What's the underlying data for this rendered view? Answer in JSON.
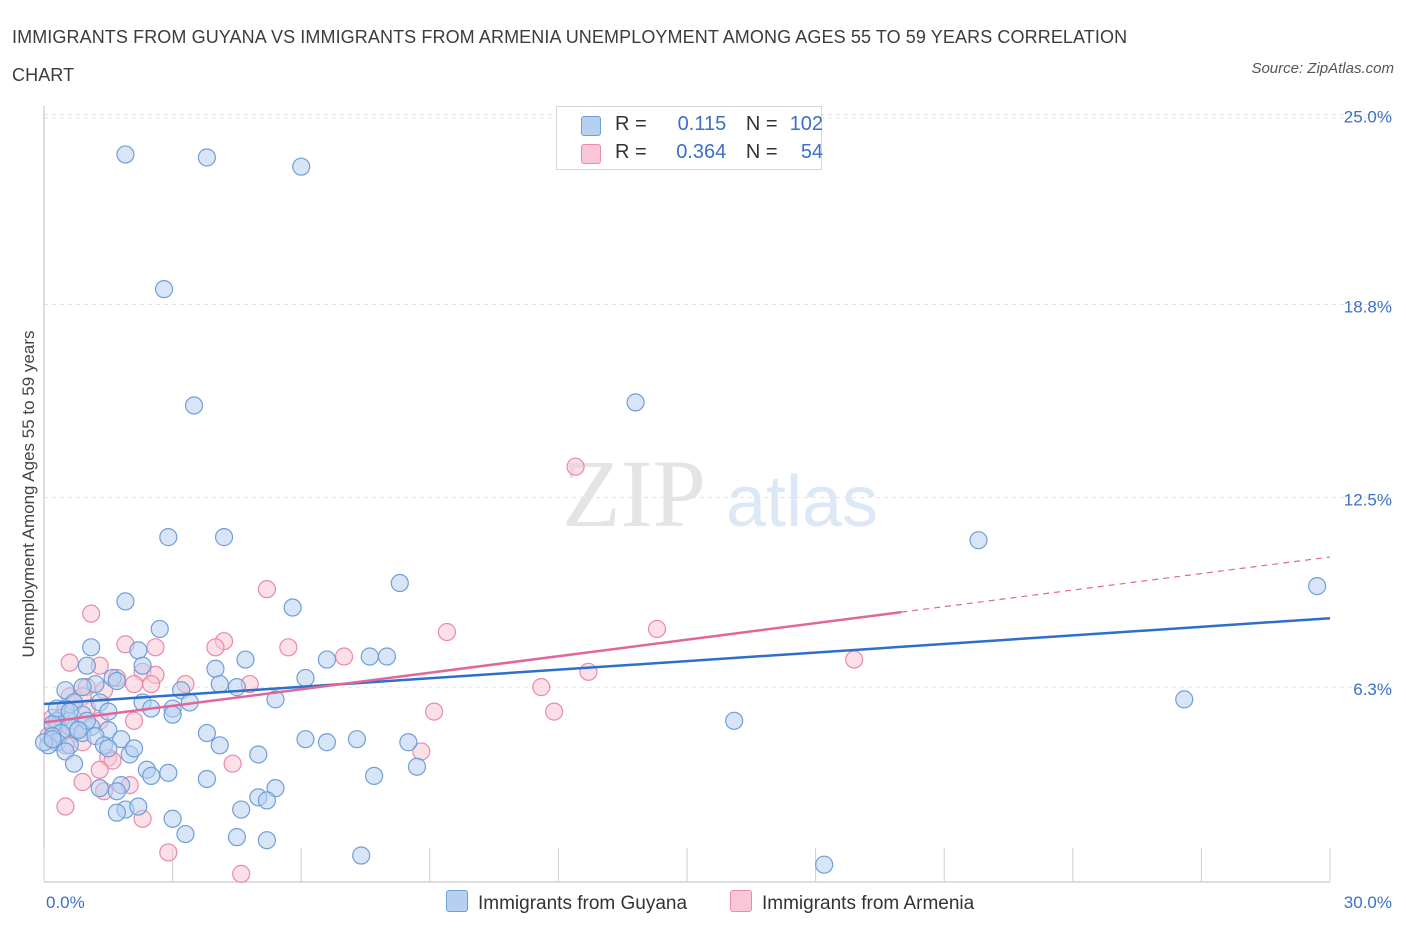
{
  "title": "IMMIGRANTS FROM GUYANA VS IMMIGRANTS FROM ARMENIA UNEMPLOYMENT AMONG AGES 55 TO 59 YEARS CORRELATION CHART",
  "source": "Source: ZipAtlas.com",
  "watermark": {
    "zip": "ZIP",
    "atlas": "atlas"
  },
  "legend_top": {
    "rows": [
      {
        "r_label": "R =",
        "r_value": "0.115",
        "n_label": "N =",
        "n_value": "102"
      },
      {
        "r_label": "R =",
        "r_value": "0.364",
        "n_label": "N =",
        "n_value": "54"
      }
    ]
  },
  "colors": {
    "guyana_fill": "#b8d0f0",
    "guyana_stroke": "#6f9fd8",
    "guyana_line": "#2e6fc9",
    "armenia_fill": "#f8c6d6",
    "armenia_stroke": "#e88aa8",
    "armenia_line": "#e0679a",
    "grid": "#e2e2e2",
    "tick_label": "#3a70c8"
  },
  "chart_data": {
    "type": "scatter",
    "title": "IMMIGRANTS FROM GUYANA VS IMMIGRANTS FROM ARMENIA UNEMPLOYMENT AMONG AGES 55 TO 59 YEARS CORRELATION CHART",
    "xlabel": "",
    "ylabel": "Unemployment Among Ages 55 to 59 years",
    "xlim": [
      0,
      30
    ],
    "ylim": [
      0,
      26
    ],
    "x_tick_labels": [
      "0.0%",
      "30.0%"
    ],
    "y_ticks": [
      6.3,
      12.5,
      18.8,
      25.0
    ],
    "y_tick_labels": [
      "6.3%",
      "12.5%",
      "18.8%",
      "25.0%"
    ],
    "legend": [
      "Immigrants from Guyana",
      "Immigrants from Armenia"
    ],
    "series": [
      {
        "name": "Immigrants from Guyana",
        "R": 0.115,
        "N": 102,
        "trend": {
          "x": [
            0,
            30
          ],
          "y": [
            5.75,
            8.55
          ]
        },
        "points": [
          [
            1.9,
            23.7
          ],
          [
            3.8,
            23.6
          ],
          [
            6.0,
            23.3
          ],
          [
            2.8,
            19.3
          ],
          [
            3.5,
            15.5
          ],
          [
            13.8,
            15.6
          ],
          [
            2.9,
            11.2
          ],
          [
            4.2,
            11.2
          ],
          [
            21.8,
            11.1
          ],
          [
            8.3,
            9.7
          ],
          [
            29.7,
            9.6
          ],
          [
            1.9,
            9.1
          ],
          [
            5.8,
            8.9
          ],
          [
            2.7,
            8.2
          ],
          [
            1.1,
            7.6
          ],
          [
            2.2,
            7.5
          ],
          [
            6.6,
            7.2
          ],
          [
            7.6,
            7.3
          ],
          [
            8.0,
            7.3
          ],
          [
            4.7,
            7.2
          ],
          [
            1.0,
            7.0
          ],
          [
            2.3,
            7.0
          ],
          [
            4.0,
            6.9
          ],
          [
            6.1,
            6.6
          ],
          [
            1.6,
            6.6
          ],
          [
            1.7,
            6.5
          ],
          [
            1.2,
            6.4
          ],
          [
            4.1,
            6.4
          ],
          [
            4.5,
            6.3
          ],
          [
            3.2,
            6.2
          ],
          [
            0.5,
            6.2
          ],
          [
            0.9,
            6.3
          ],
          [
            26.6,
            5.9
          ],
          [
            5.4,
            5.9
          ],
          [
            3.4,
            5.8
          ],
          [
            2.3,
            5.8
          ],
          [
            0.7,
            5.8
          ],
          [
            1.3,
            5.8
          ],
          [
            0.5,
            5.6
          ],
          [
            2.5,
            5.6
          ],
          [
            3.0,
            5.6
          ],
          [
            1.5,
            5.5
          ],
          [
            3.0,
            5.4
          ],
          [
            0.9,
            5.4
          ],
          [
            0.4,
            5.3
          ],
          [
            0.6,
            5.2
          ],
          [
            16.1,
            5.2
          ],
          [
            0.3,
            5.2
          ],
          [
            0.2,
            5.1
          ],
          [
            0.6,
            5.0
          ],
          [
            1.1,
            5.0
          ],
          [
            0.8,
            4.9
          ],
          [
            1.5,
            4.9
          ],
          [
            0.4,
            4.8
          ],
          [
            0.9,
            4.8
          ],
          [
            3.8,
            4.8
          ],
          [
            0.2,
            4.7
          ],
          [
            1.2,
            4.7
          ],
          [
            1.8,
            4.6
          ],
          [
            6.1,
            4.6
          ],
          [
            6.6,
            4.5
          ],
          [
            7.3,
            4.6
          ],
          [
            8.5,
            4.5
          ],
          [
            0.3,
            4.5
          ],
          [
            0.6,
            4.4
          ],
          [
            4.1,
            4.4
          ],
          [
            1.4,
            4.4
          ],
          [
            1.5,
            4.3
          ],
          [
            0.1,
            4.4
          ],
          [
            0.0,
            4.5
          ],
          [
            0.5,
            4.2
          ],
          [
            2.0,
            4.1
          ],
          [
            5.0,
            4.1
          ],
          [
            0.7,
            3.8
          ],
          [
            8.7,
            3.7
          ],
          [
            2.4,
            3.6
          ],
          [
            2.9,
            3.5
          ],
          [
            2.5,
            3.4
          ],
          [
            7.7,
            3.4
          ],
          [
            3.8,
            3.3
          ],
          [
            1.8,
            3.1
          ],
          [
            1.3,
            3.0
          ],
          [
            1.7,
            2.9
          ],
          [
            5.4,
            3.0
          ],
          [
            5.0,
            2.7
          ],
          [
            5.2,
            2.6
          ],
          [
            1.9,
            2.3
          ],
          [
            2.2,
            2.4
          ],
          [
            4.6,
            2.3
          ],
          [
            1.7,
            2.2
          ],
          [
            3.0,
            2.0
          ],
          [
            3.3,
            1.5
          ],
          [
            4.5,
            1.4
          ],
          [
            5.2,
            1.3
          ],
          [
            7.4,
            0.8
          ],
          [
            18.2,
            0.5
          ],
          [
            0.3,
            5.6
          ],
          [
            0.2,
            4.6
          ],
          [
            1.0,
            5.2
          ],
          [
            0.6,
            5.5
          ],
          [
            2.1,
            4.3
          ],
          [
            0.8,
            4.9
          ]
        ]
      },
      {
        "name": "Immigrants from Armenia",
        "R": 0.364,
        "N": 54,
        "trend": {
          "x": [
            0,
            20
          ],
          "y": [
            5.15,
            8.75
          ],
          "dashed_extension": {
            "x": [
              20,
              30
            ],
            "y": [
              8.75,
              10.55
            ]
          }
        },
        "points": [
          [
            12.4,
            13.5
          ],
          [
            5.2,
            9.5
          ],
          [
            1.1,
            8.7
          ],
          [
            9.4,
            8.1
          ],
          [
            14.3,
            8.2
          ],
          [
            1.9,
            7.7
          ],
          [
            2.6,
            7.6
          ],
          [
            4.2,
            7.8
          ],
          [
            4.0,
            7.6
          ],
          [
            5.7,
            7.6
          ],
          [
            7.0,
            7.3
          ],
          [
            0.6,
            7.1
          ],
          [
            1.3,
            7.0
          ],
          [
            2.3,
            6.8
          ],
          [
            18.9,
            7.2
          ],
          [
            12.7,
            6.8
          ],
          [
            2.6,
            6.7
          ],
          [
            2.5,
            6.4
          ],
          [
            3.3,
            6.4
          ],
          [
            4.8,
            6.4
          ],
          [
            2.1,
            6.4
          ],
          [
            1.0,
            6.3
          ],
          [
            11.6,
            6.3
          ],
          [
            1.4,
            6.2
          ],
          [
            0.6,
            6.0
          ],
          [
            0.9,
            6.0
          ],
          [
            1.0,
            5.6
          ],
          [
            9.1,
            5.5
          ],
          [
            11.9,
            5.5
          ],
          [
            2.1,
            5.2
          ],
          [
            1.3,
            5.2
          ],
          [
            0.3,
            5.1
          ],
          [
            0.2,
            5.0
          ],
          [
            0.7,
            4.9
          ],
          [
            0.4,
            4.8
          ],
          [
            0.1,
            4.7
          ],
          [
            0.2,
            4.6
          ],
          [
            0.9,
            4.5
          ],
          [
            0.5,
            4.4
          ],
          [
            8.8,
            4.2
          ],
          [
            1.5,
            4.0
          ],
          [
            1.6,
            3.9
          ],
          [
            4.4,
            3.8
          ],
          [
            1.3,
            3.6
          ],
          [
            0.9,
            3.2
          ],
          [
            2.0,
            3.1
          ],
          [
            1.4,
            2.9
          ],
          [
            0.5,
            2.4
          ],
          [
            2.3,
            2.0
          ],
          [
            2.9,
            0.9
          ],
          [
            4.6,
            0.2
          ],
          [
            0.7,
            5.8
          ],
          [
            1.7,
            6.6
          ],
          [
            0.2,
            5.3
          ]
        ]
      }
    ]
  }
}
